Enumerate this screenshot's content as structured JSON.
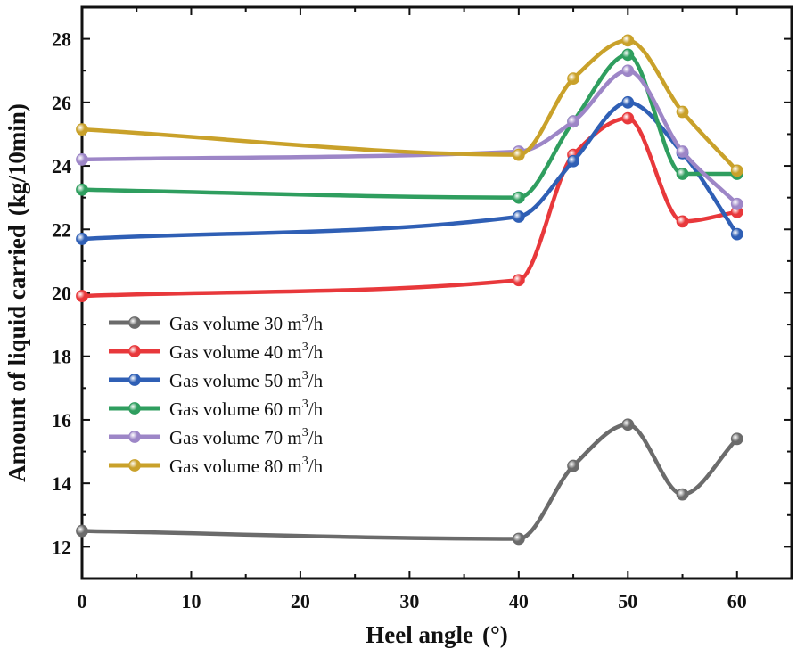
{
  "chart_data": {
    "type": "line",
    "xlabel": "Heel angle",
    "xunit": "(°)",
    "ylabel": "Amount of liquid carried",
    "yunit": "(kg/10min)",
    "xlim": [
      0,
      65
    ],
    "ylim": [
      11,
      29
    ],
    "xticks": [
      0,
      10,
      20,
      30,
      40,
      50,
      60
    ],
    "yticks": [
      12,
      14,
      16,
      18,
      20,
      22,
      24,
      26,
      28
    ],
    "x": [
      0,
      40,
      45,
      50,
      55,
      60
    ],
    "legend_position": "lower-left",
    "series": [
      {
        "name": "Gas volume 30 m",
        "sup": "3",
        "unit_tail": "/h",
        "color": "#6b6b6b",
        "values": [
          12.5,
          12.25,
          14.55,
          15.85,
          13.65,
          15.4
        ]
      },
      {
        "name": "Gas volume 40 m",
        "sup": "3",
        "unit_tail": "/h",
        "color": "#e8383b",
        "values": [
          19.9,
          20.4,
          24.35,
          25.5,
          22.25,
          22.55
        ]
      },
      {
        "name": "Gas volume 50 m",
        "sup": "3",
        "unit_tail": "/h",
        "color": "#2f5fb5",
        "values": [
          21.7,
          22.4,
          24.15,
          26.0,
          24.4,
          21.85
        ]
      },
      {
        "name": "Gas volume 60 m",
        "sup": "3",
        "unit_tail": "/h",
        "color": "#2f9e5f",
        "values": [
          23.25,
          23.0,
          25.4,
          27.5,
          23.75,
          23.75
        ]
      },
      {
        "name": "Gas volume 70 m",
        "sup": "3",
        "unit_tail": "/h",
        "color": "#9d86c7",
        "values": [
          24.2,
          24.45,
          25.4,
          27.0,
          24.45,
          22.8
        ]
      },
      {
        "name": "Gas volume 80 m",
        "sup": "3",
        "unit_tail": "/h",
        "color": "#c9a12a",
        "values": [
          25.15,
          24.35,
          26.75,
          27.95,
          25.7,
          23.85
        ]
      }
    ]
  }
}
